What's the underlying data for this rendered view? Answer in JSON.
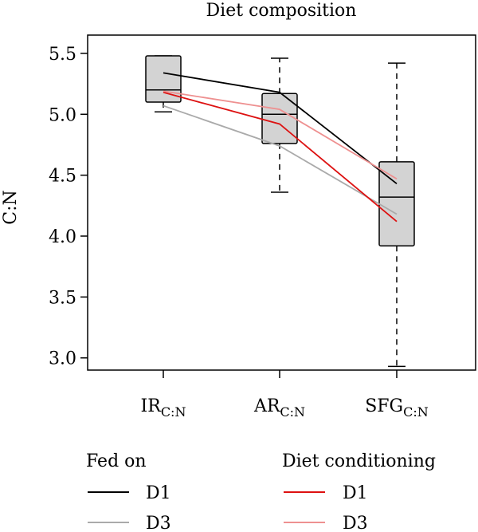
{
  "chart_data": {
    "type": "box",
    "title": "Diet composition",
    "ylabel": "C:N",
    "xlabel": "",
    "ylim": [
      2.9,
      5.65
    ],
    "yticks": [
      "5.5",
      "5.0",
      "4.5",
      "4.0",
      "3.5",
      "3.0"
    ],
    "categories": [
      {
        "main": "IR",
        "sub": "C:N"
      },
      {
        "main": "AR",
        "sub": "C:N"
      },
      {
        "main": "SFG",
        "sub": "C:N"
      }
    ],
    "boxes": [
      {
        "q1": 5.1,
        "median": 5.2,
        "q3": 5.48,
        "whisker_low": 5.02,
        "whisker_high": 5.48
      },
      {
        "q1": 4.76,
        "median": 5.0,
        "q3": 5.17,
        "whisker_low": 4.36,
        "whisker_high": 5.46
      },
      {
        "q1": 3.92,
        "median": 4.32,
        "q3": 4.61,
        "whisker_low": 2.93,
        "whisker_high": 5.42
      }
    ],
    "series": [
      {
        "group": "Fed on",
        "name": "D1",
        "color": "#000000",
        "values": [
          5.34,
          5.18,
          4.43
        ]
      },
      {
        "group": "Fed on",
        "name": "D3",
        "color": "#aaaaaa",
        "values": [
          5.07,
          4.74,
          4.18
        ]
      },
      {
        "group": "Diet conditioning",
        "name": "D1",
        "color": "#dd1111",
        "values": [
          5.18,
          4.92,
          4.12
        ]
      },
      {
        "group": "Diet conditioning",
        "name": "D3",
        "color": "#ee9090",
        "values": [
          5.19,
          5.04,
          4.47
        ]
      }
    ],
    "legend": {
      "fed_on_title": "Fed on",
      "conditioning_title": "Diet conditioning",
      "placement": "bottom"
    },
    "box_fill": "#d3d3d3"
  }
}
